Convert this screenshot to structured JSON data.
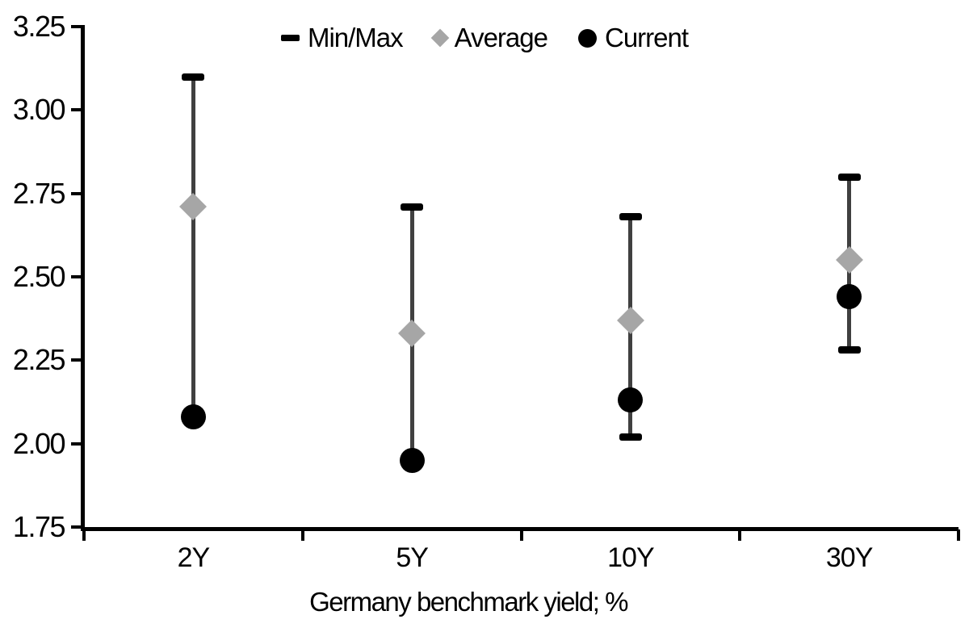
{
  "chart_data": {
    "type": "scatter",
    "subtype": "min-max-range",
    "title": "",
    "xlabel": "Germany benchmark yield; %",
    "ylabel": "",
    "categories": [
      "2Y",
      "5Y",
      "10Y",
      "30Y"
    ],
    "series": [
      {
        "name": "Min/Max",
        "marker": "dash",
        "max_values": [
          3.1,
          2.71,
          2.68,
          2.8
        ],
        "min_values": [
          2.08,
          1.95,
          2.02,
          2.28
        ]
      },
      {
        "name": "Average",
        "marker": "diamond",
        "values": [
          2.71,
          2.33,
          2.37,
          2.55
        ]
      },
      {
        "name": "Current",
        "marker": "circle",
        "values": [
          2.08,
          1.95,
          2.13,
          2.44
        ]
      }
    ],
    "ylim": [
      1.75,
      3.25
    ],
    "ytick_labels": [
      "3.25",
      "3.00",
      "2.75",
      "2.50",
      "2.25",
      "2.00",
      "1.75"
    ],
    "ytick_values": [
      3.25,
      3.0,
      2.75,
      2.5,
      2.25,
      2.0,
      1.75
    ],
    "grid": false,
    "legend": {
      "position": "top-center",
      "items": [
        {
          "label": "Min/Max",
          "marker": "dash"
        },
        {
          "label": "Average",
          "marker": "diamond"
        },
        {
          "label": "Current",
          "marker": "circle"
        }
      ]
    },
    "colors": {
      "average_marker": "#a6a6a6",
      "current_marker": "#000000",
      "range_line": "#404040",
      "range_cap": "#000000",
      "axis": "#000000",
      "text": "#000000",
      "background": "#ffffff"
    }
  }
}
